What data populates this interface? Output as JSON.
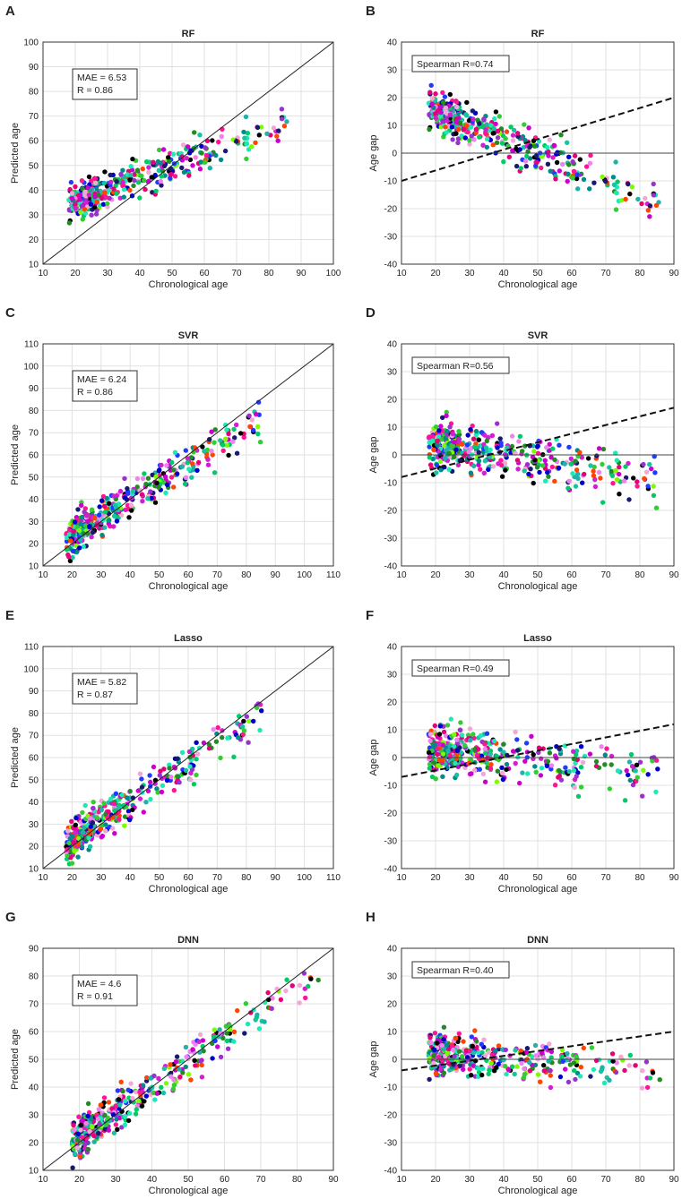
{
  "chart_data": [
    {
      "id": "A",
      "letter": "A",
      "type": "scatter",
      "title": "RF",
      "xlabel": "Chronological age",
      "ylabel": "Predicted age",
      "xlim": [
        10,
        100
      ],
      "ylim": [
        10,
        100
      ],
      "xticks": [
        10,
        20,
        30,
        40,
        50,
        60,
        70,
        80,
        90,
        100
      ],
      "yticks": [
        10,
        20,
        30,
        40,
        50,
        60,
        70,
        80,
        90,
        100
      ],
      "reference_line": "identity",
      "stats": [
        "MAE = 6.53",
        "R = 0.86"
      ],
      "trend": {
        "slope": 0.5,
        "intercept": 25,
        "spread": 5,
        "offset": 0
      }
    },
    {
      "id": "B",
      "letter": "B",
      "type": "scatter",
      "title": "RF",
      "xlabel": "Chronological age",
      "ylabel": "Age gap",
      "xlim": [
        10,
        90
      ],
      "ylim": [
        -40,
        40
      ],
      "xticks": [
        10,
        20,
        30,
        40,
        50,
        60,
        70,
        80,
        90
      ],
      "yticks": [
        -40,
        -30,
        -20,
        -10,
        0,
        10,
        20,
        30,
        40
      ],
      "reference_line": "zero",
      "stats": [
        "Spearman R=0.74"
      ],
      "fit_line": {
        "x": [
          10,
          90
        ],
        "y": [
          -10,
          20
        ]
      },
      "trend": {
        "slope": 0.5,
        "intercept": 25,
        "spread": 5,
        "offset": 0
      }
    },
    {
      "id": "C",
      "letter": "C",
      "type": "scatter",
      "title": "SVR",
      "xlabel": "Chronological age",
      "ylabel": "Predicted age",
      "xlim": [
        10,
        110
      ],
      "ylim": [
        10,
        110
      ],
      "xticks": [
        10,
        20,
        30,
        40,
        50,
        60,
        70,
        80,
        90,
        100,
        110
      ],
      "yticks": [
        10,
        20,
        30,
        40,
        50,
        60,
        70,
        80,
        90,
        100,
        110
      ],
      "reference_line": "identity",
      "stats": [
        "MAE = 6.24",
        "R = 0.86"
      ],
      "trend": {
        "slope": 0.8,
        "intercept": 8,
        "spread": 6,
        "offset": 1
      }
    },
    {
      "id": "D",
      "letter": "D",
      "type": "scatter",
      "title": "SVR",
      "xlabel": "Chronological age",
      "ylabel": "Age gap",
      "xlim": [
        10,
        90
      ],
      "ylim": [
        -40,
        40
      ],
      "xticks": [
        10,
        20,
        30,
        40,
        50,
        60,
        70,
        80,
        90
      ],
      "yticks": [
        -40,
        -30,
        -20,
        -10,
        0,
        10,
        20,
        30,
        40
      ],
      "reference_line": "zero",
      "stats": [
        "Spearman R=0.56"
      ],
      "fit_line": {
        "x": [
          10,
          90
        ],
        "y": [
          -8,
          17
        ]
      },
      "trend": {
        "slope": 0.8,
        "intercept": 8,
        "spread": 6,
        "offset": 1
      }
    },
    {
      "id": "E",
      "letter": "E",
      "type": "scatter",
      "title": "Lasso",
      "xlabel": "Chronological age",
      "ylabel": "Predicted age",
      "xlim": [
        10,
        110
      ],
      "ylim": [
        10,
        110
      ],
      "xticks": [
        10,
        20,
        30,
        40,
        50,
        60,
        70,
        80,
        90,
        100,
        110
      ],
      "yticks": [
        10,
        20,
        30,
        40,
        50,
        60,
        70,
        80,
        90,
        100,
        110
      ],
      "reference_line": "identity",
      "stats": [
        "MAE = 5.82",
        "R = 0.87"
      ],
      "trend": {
        "slope": 0.85,
        "intercept": 6,
        "spread": 6,
        "offset": 2
      }
    },
    {
      "id": "F",
      "letter": "F",
      "type": "scatter",
      "title": "Lasso",
      "xlabel": "Chronological age",
      "ylabel": "Age gap",
      "xlim": [
        10,
        90
      ],
      "ylim": [
        -40,
        40
      ],
      "xticks": [
        10,
        20,
        30,
        40,
        50,
        60,
        70,
        80,
        90
      ],
      "yticks": [
        -40,
        -30,
        -20,
        -10,
        0,
        10,
        20,
        30,
        40
      ],
      "reference_line": "zero",
      "stats": [
        "Spearman R=0.49"
      ],
      "fit_line": {
        "x": [
          10,
          90
        ],
        "y": [
          -7,
          12
        ]
      },
      "trend": {
        "slope": 0.85,
        "intercept": 6,
        "spread": 6,
        "offset": 2
      }
    },
    {
      "id": "G",
      "letter": "G",
      "type": "scatter",
      "title": "DNN",
      "xlabel": "Chronological age",
      "ylabel": "Predicted age",
      "xlim": [
        10,
        90
      ],
      "ylim": [
        10,
        90
      ],
      "xticks": [
        10,
        20,
        30,
        40,
        50,
        60,
        70,
        80,
        90
      ],
      "yticks": [
        10,
        20,
        30,
        40,
        50,
        60,
        70,
        80,
        90
      ],
      "reference_line": "identity",
      "stats": [
        "MAE = 4.6",
        "R = 0.91"
      ],
      "trend": {
        "slope": 0.9,
        "intercept": 4,
        "spread": 5,
        "offset": 3
      }
    },
    {
      "id": "H",
      "letter": "H",
      "type": "scatter",
      "title": "DNN",
      "xlabel": "Chronological age",
      "ylabel": "Age gap",
      "xlim": [
        10,
        90
      ],
      "ylim": [
        -40,
        40
      ],
      "xticks": [
        10,
        20,
        30,
        40,
        50,
        60,
        70,
        80,
        90
      ],
      "yticks": [
        -40,
        -30,
        -20,
        -10,
        0,
        10,
        20,
        30,
        40
      ],
      "reference_line": "zero",
      "stats": [
        "Spearman R=0.40"
      ],
      "fit_line": {
        "x": [
          10,
          90
        ],
        "y": [
          -4,
          10
        ]
      },
      "trend": {
        "slope": 0.9,
        "intercept": 4,
        "spread": 5,
        "offset": 3
      }
    }
  ],
  "point_colors": [
    "#1de9b6",
    "#19c2a0",
    "#00cc66",
    "#33cc33",
    "#7cfc00",
    "#ff1493",
    "#e6007a",
    "#cc00cc",
    "#d11fd1",
    "#9932cc",
    "#ee82ee",
    "#f4a6d7",
    "#0000cd",
    "#1e3cff",
    "#191970",
    "#000000",
    "#008b8b",
    "#20b2aa",
    "#ff4500",
    "#228b22"
  ]
}
